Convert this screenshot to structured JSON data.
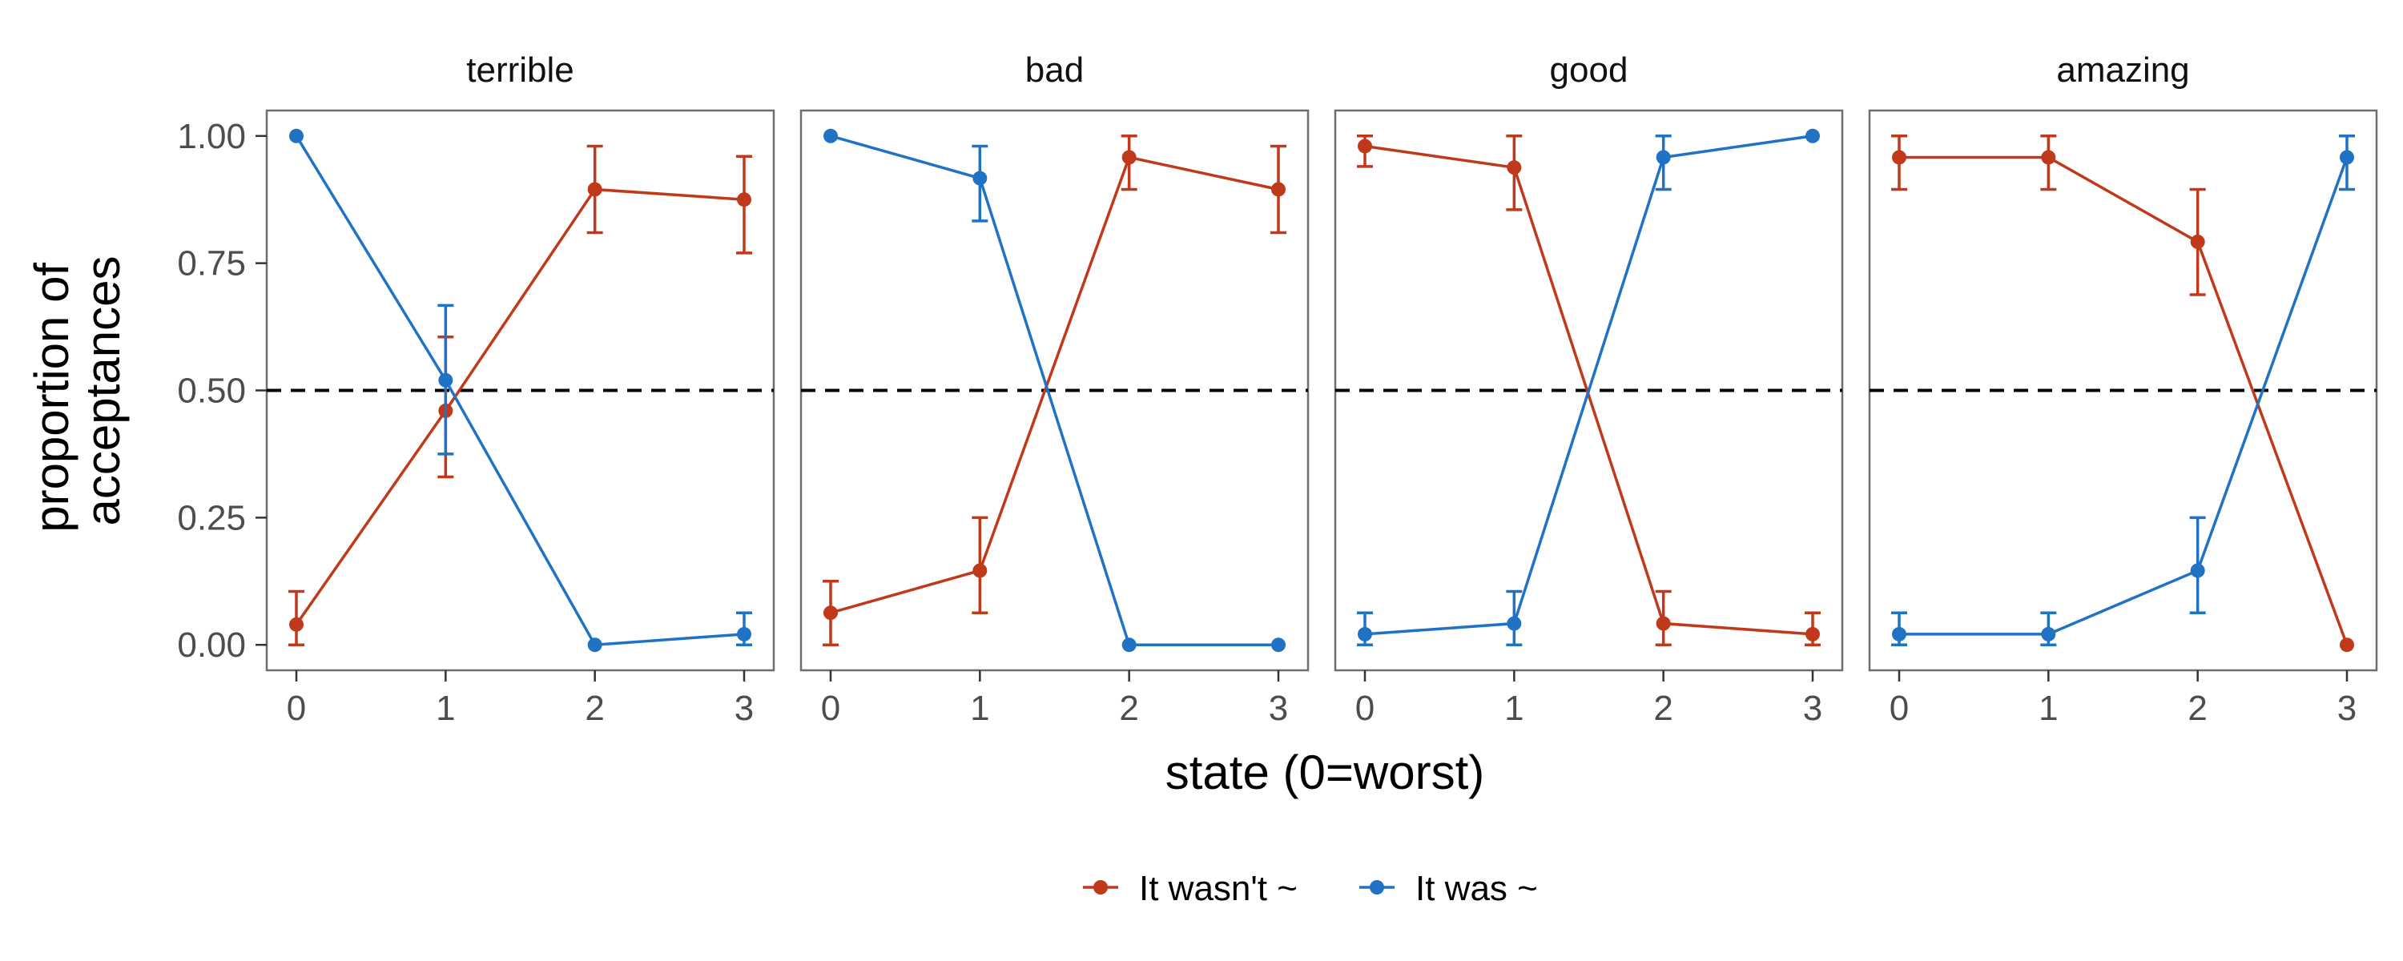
{
  "chart_data": {
    "type": "line",
    "facets": [
      "terrible",
      "bad",
      "good",
      "amazing"
    ],
    "x": [
      0,
      1,
      2,
      3
    ],
    "xlabel": "state (0=worst)",
    "ylabel_lines": [
      "proportion of",
      "acceptances"
    ],
    "ylim": [
      -0.05,
      1.05
    ],
    "yticks": [
      0.0,
      0.25,
      0.5,
      0.75,
      1.0
    ],
    "ytick_labels": [
      "0.00",
      "0.25",
      "0.50",
      "0.75",
      "1.00"
    ],
    "xtick_labels": [
      "0",
      "1",
      "2",
      "3"
    ],
    "reference_line": 0.5,
    "grid": false,
    "legend_position": "bottom",
    "series": [
      {
        "name": "It wasn't ~",
        "color": "#c0391b",
        "panels": [
          {
            "values": [
              0.04,
              0.46,
              0.895,
              0.875
            ],
            "lower": [
              0.0,
              0.33,
              0.81,
              0.77
            ],
            "upper": [
              0.105,
              0.605,
              0.98,
              0.96
            ]
          },
          {
            "values": [
              0.063,
              0.146,
              0.958,
              0.895
            ],
            "lower": [
              0.0,
              0.063,
              0.895,
              0.81
            ],
            "upper": [
              0.125,
              0.25,
              1.0,
              0.98
            ]
          },
          {
            "values": [
              0.98,
              0.938,
              0.042,
              0.021
            ],
            "lower": [
              0.94,
              0.855,
              0.0,
              0.0
            ],
            "upper": [
              1.0,
              1.0,
              0.105,
              0.063
            ]
          },
          {
            "values": [
              0.958,
              0.958,
              0.792,
              0.0
            ],
            "lower": [
              0.895,
              0.895,
              0.688,
              0.0
            ],
            "upper": [
              1.0,
              1.0,
              0.895,
              0.0
            ]
          }
        ]
      },
      {
        "name": "It was ~",
        "color": "#1f72c4",
        "panels": [
          {
            "values": [
              1.0,
              0.52,
              0.0,
              0.021
            ],
            "lower": [
              1.0,
              0.375,
              0.0,
              0.0
            ],
            "upper": [
              1.0,
              0.667,
              0.0,
              0.063
            ]
          },
          {
            "values": [
              1.0,
              0.917,
              0.0,
              0.0
            ],
            "lower": [
              1.0,
              0.833,
              0.0,
              0.0
            ],
            "upper": [
              1.0,
              0.98,
              0.0,
              0.0
            ]
          },
          {
            "values": [
              0.021,
              0.042,
              0.958,
              1.0
            ],
            "lower": [
              0.0,
              0.0,
              0.895,
              1.0
            ],
            "upper": [
              0.063,
              0.105,
              1.0,
              1.0
            ]
          },
          {
            "values": [
              0.021,
              0.021,
              0.146,
              0.958
            ],
            "lower": [
              0.0,
              0.0,
              0.063,
              0.895
            ],
            "upper": [
              0.063,
              0.063,
              0.25,
              1.0
            ]
          }
        ]
      }
    ]
  }
}
